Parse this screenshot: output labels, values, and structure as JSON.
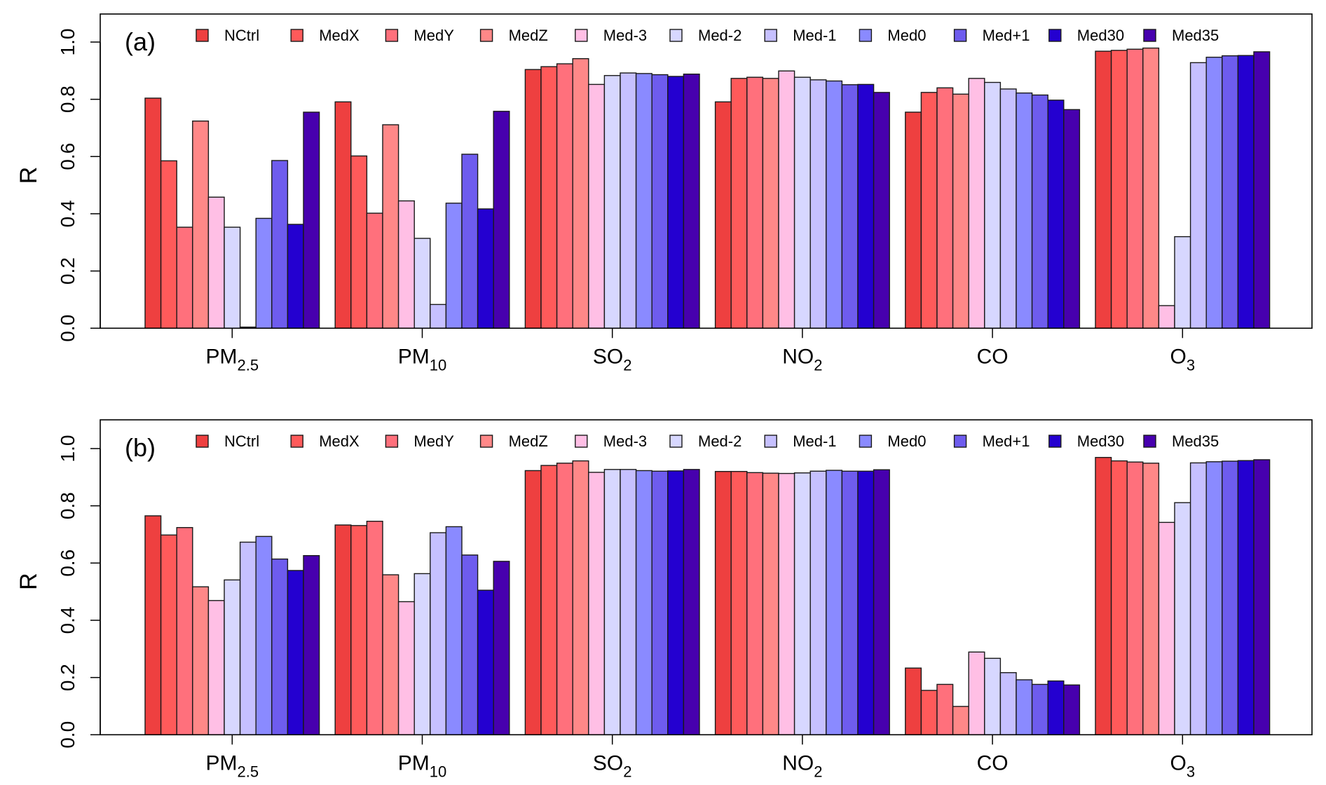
{
  "chart_data": [
    {
      "type": "bar",
      "panel_label": "(a)",
      "title": "",
      "xlabel": "",
      "ylabel": "R",
      "ylim": [
        0,
        1.1
      ],
      "yticks": [
        "0.0",
        "0.2",
        "0.4",
        "0.6",
        "0.8",
        "1.0"
      ],
      "grid": false,
      "legend_position": "top",
      "categories": [
        {
          "base": "PM",
          "sub": "2.5"
        },
        {
          "base": "PM",
          "sub": "10"
        },
        {
          "base": "SO",
          "sub": "2"
        },
        {
          "base": "NO",
          "sub": "2"
        },
        {
          "base": "CO",
          "sub": ""
        },
        {
          "base": "O",
          "sub": "3"
        }
      ],
      "series": [
        {
          "name": "NCtrl",
          "color": "#EE4040",
          "values": [
            0.804,
            0.791,
            0.904,
            0.791,
            0.755,
            0.968
          ]
        },
        {
          "name": "MedX",
          "color": "#FF5A5A",
          "values": [
            0.585,
            0.602,
            0.914,
            0.873,
            0.824,
            0.971
          ]
        },
        {
          "name": "MedY",
          "color": "#FF707C",
          "values": [
            0.353,
            0.402,
            0.924,
            0.877,
            0.84,
            0.975
          ]
        },
        {
          "name": "MedZ",
          "color": "#FF8888",
          "values": [
            0.724,
            0.711,
            0.942,
            0.873,
            0.818,
            0.979
          ]
        },
        {
          "name": "Med-3",
          "color": "#FFBFE5",
          "values": [
            0.458,
            0.445,
            0.852,
            0.899,
            0.873,
            0.079
          ]
        },
        {
          "name": "Med-2",
          "color": "#D7D7FF",
          "values": [
            0.353,
            0.314,
            0.883,
            0.877,
            0.859,
            0.32
          ]
        },
        {
          "name": "Med-1",
          "color": "#C6C0FF",
          "values": [
            0.004,
            0.083,
            0.892,
            0.868,
            0.836,
            0.928
          ]
        },
        {
          "name": "Med0",
          "color": "#8A8AFF",
          "values": [
            0.384,
            0.437,
            0.89,
            0.864,
            0.822,
            0.947
          ]
        },
        {
          "name": "Med+1",
          "color": "#6E5CEE",
          "values": [
            0.586,
            0.608,
            0.886,
            0.851,
            0.815,
            0.952
          ]
        },
        {
          "name": "Med30",
          "color": "#2400D0",
          "values": [
            0.363,
            0.417,
            0.88,
            0.852,
            0.797,
            0.953
          ]
        },
        {
          "name": "Med35",
          "color": "#4700AE",
          "values": [
            0.755,
            0.758,
            0.888,
            0.824,
            0.764,
            0.966
          ]
        }
      ]
    },
    {
      "type": "bar",
      "panel_label": "(b)",
      "title": "",
      "xlabel": "",
      "ylabel": "R",
      "ylim": [
        0,
        1.1
      ],
      "yticks": [
        "0.0",
        "0.2",
        "0.4",
        "0.6",
        "0.8",
        "1.0"
      ],
      "grid": false,
      "legend_position": "top",
      "categories": [
        {
          "base": "PM",
          "sub": "2.5"
        },
        {
          "base": "PM",
          "sub": "10"
        },
        {
          "base": "SO",
          "sub": "2"
        },
        {
          "base": "NO",
          "sub": "2"
        },
        {
          "base": "CO",
          "sub": ""
        },
        {
          "base": "O",
          "sub": "3"
        }
      ],
      "series": [
        {
          "name": "NCtrl",
          "color": "#EE4040",
          "values": [
            0.765,
            0.733,
            0.923,
            0.92,
            0.233,
            0.969
          ]
        },
        {
          "name": "MedX",
          "color": "#FF5A5A",
          "values": [
            0.698,
            0.731,
            0.941,
            0.92,
            0.155,
            0.957
          ]
        },
        {
          "name": "MedY",
          "color": "#FF707C",
          "values": [
            0.724,
            0.746,
            0.949,
            0.916,
            0.176,
            0.953
          ]
        },
        {
          "name": "MedZ",
          "color": "#FF8888",
          "values": [
            0.517,
            0.559,
            0.957,
            0.914,
            0.099,
            0.949
          ]
        },
        {
          "name": "Med-3",
          "color": "#FFBFE5",
          "values": [
            0.469,
            0.465,
            0.917,
            0.913,
            0.289,
            0.742
          ]
        },
        {
          "name": "Med-2",
          "color": "#D7D7FF",
          "values": [
            0.541,
            0.563,
            0.927,
            0.915,
            0.267,
            0.811
          ]
        },
        {
          "name": "Med-1",
          "color": "#C6C0FF",
          "values": [
            0.673,
            0.706,
            0.927,
            0.921,
            0.217,
            0.95
          ]
        },
        {
          "name": "Med0",
          "color": "#8A8AFF",
          "values": [
            0.693,
            0.727,
            0.923,
            0.924,
            0.192,
            0.954
          ]
        },
        {
          "name": "Med+1",
          "color": "#6E5CEE",
          "values": [
            0.614,
            0.628,
            0.921,
            0.921,
            0.176,
            0.956
          ]
        },
        {
          "name": "Med30",
          "color": "#2400D0",
          "values": [
            0.574,
            0.505,
            0.922,
            0.921,
            0.188,
            0.958
          ]
        },
        {
          "name": "Med35",
          "color": "#4700AE",
          "values": [
            0.626,
            0.606,
            0.927,
            0.926,
            0.174,
            0.961
          ]
        }
      ]
    }
  ]
}
